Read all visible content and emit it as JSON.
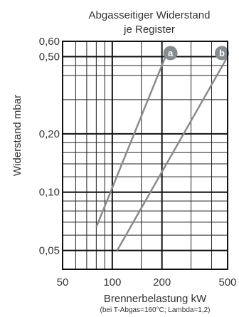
{
  "chart_data": {
    "type": "line",
    "title": [
      "Abgasseitiger Widerstand",
      "je Register"
    ],
    "ylabel": "Widerstand mbar",
    "xlabel": "Brennerbelastung kW",
    "xnote": "(bei T-Abgas=160°C; Lambda=1,2)",
    "xscale": "log",
    "yscale": "log",
    "xlim": [
      50,
      500
    ],
    "ylim": [
      0.04,
      0.6
    ],
    "xticks": [
      50,
      100,
      200,
      500
    ],
    "xtick_labels": [
      "50",
      "100",
      "200",
      "500"
    ],
    "yticks": [
      0.05,
      0.1,
      0.2,
      0.5,
      0.6
    ],
    "ytick_labels": [
      "0,05",
      "0,10",
      "0,20",
      "0,50",
      "0,60"
    ],
    "x_minor_grid": [
      60,
      70,
      80,
      90,
      150,
      300,
      400
    ],
    "y_minor_grid": [
      0.06,
      0.07,
      0.08,
      0.09,
      0.12,
      0.14,
      0.16,
      0.18,
      0.3,
      0.4,
      0.45
    ],
    "series": [
      {
        "name": "a",
        "x": [
          80,
          210
        ],
        "y": [
          0.066,
          0.5
        ]
      },
      {
        "name": "b",
        "x": [
          107,
          500
        ],
        "y": [
          0.05,
          0.5
        ]
      }
    ],
    "grid": true,
    "colors": {
      "series": "#888c8f",
      "grid": "#111111"
    }
  }
}
